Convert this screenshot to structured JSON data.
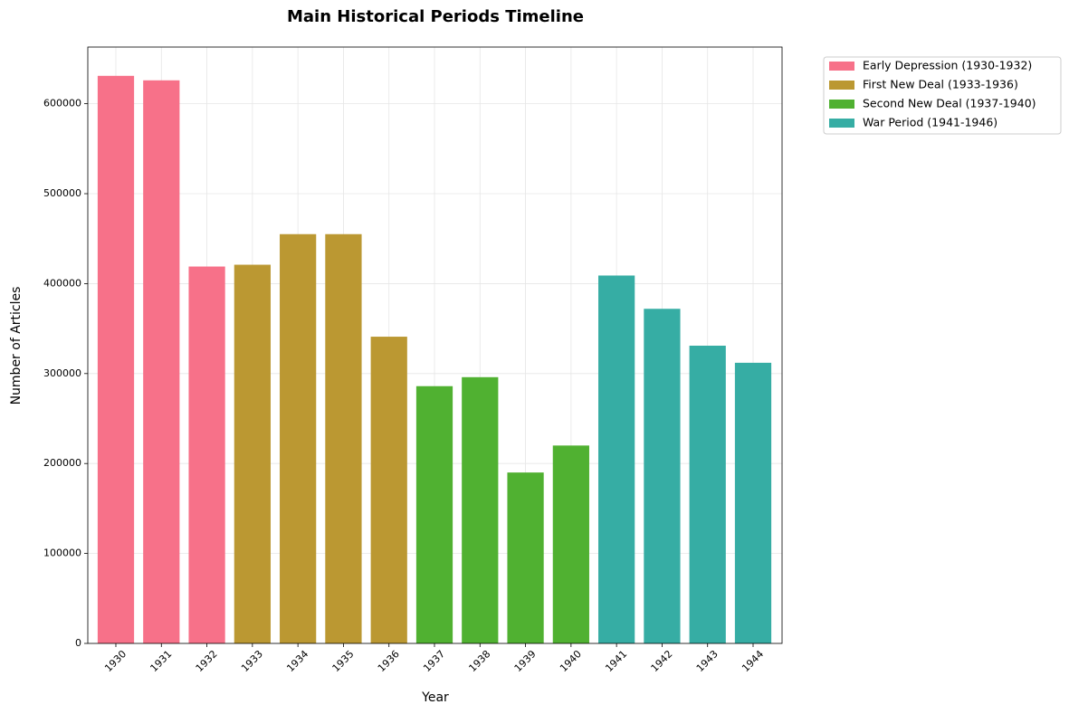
{
  "chart_data": {
    "type": "bar",
    "title": "Main Historical Periods Timeline",
    "xlabel": "Year",
    "ylabel": "Number of Articles",
    "categories": [
      "1930",
      "1931",
      "1932",
      "1933",
      "1934",
      "1935",
      "1936",
      "1937",
      "1938",
      "1939",
      "1940",
      "1941",
      "1942",
      "1943",
      "1944"
    ],
    "series": [
      {
        "name": "Early Depression (1930-1932)",
        "color": "#f77189",
        "values": [
          631000,
          626000,
          419000,
          null,
          null,
          null,
          null,
          null,
          null,
          null,
          null,
          null,
          null,
          null,
          null
        ]
      },
      {
        "name": "First New Deal (1933-1936)",
        "color": "#bb9832",
        "values": [
          null,
          null,
          null,
          421000,
          455000,
          455000,
          341000,
          null,
          null,
          null,
          null,
          null,
          null,
          null,
          null
        ]
      },
      {
        "name": "Second New Deal (1937-1940)",
        "color": "#50b131",
        "values": [
          null,
          null,
          null,
          null,
          null,
          null,
          null,
          286000,
          296000,
          190000,
          220000,
          null,
          null,
          null,
          null
        ]
      },
      {
        "name": "War Period (1941-1946)",
        "color": "#36ada4",
        "values": [
          null,
          null,
          null,
          null,
          null,
          null,
          null,
          null,
          null,
          null,
          null,
          409000,
          372000,
          331000,
          312000
        ]
      }
    ],
    "ylim": [
      0,
      663000
    ],
    "yticks": [
      0,
      100000,
      200000,
      300000,
      400000,
      500000,
      600000
    ],
    "grid": true,
    "legend": "outside upper right"
  }
}
